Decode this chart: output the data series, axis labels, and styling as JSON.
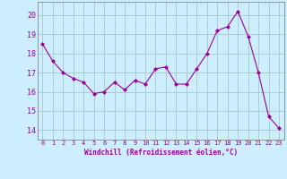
{
  "x": [
    0,
    1,
    2,
    3,
    4,
    5,
    6,
    7,
    8,
    9,
    10,
    11,
    12,
    13,
    14,
    15,
    16,
    17,
    18,
    19,
    20,
    21,
    22,
    23
  ],
  "y": [
    18.5,
    17.6,
    17.0,
    16.7,
    16.5,
    15.9,
    16.0,
    16.5,
    16.1,
    16.6,
    16.4,
    17.2,
    17.3,
    16.4,
    16.4,
    17.2,
    18.0,
    19.2,
    19.4,
    20.2,
    18.9,
    17.0,
    14.7,
    14.1
  ],
  "line_color": "#990099",
  "marker": "D",
  "marker_size": 2,
  "bg_color": "#cceeff",
  "grid_color": "#aacccc",
  "xlabel": "Windchill (Refroidissement éolien,°C)",
  "xlabel_color": "#990099",
  "tick_color": "#990099",
  "ylim": [
    13.5,
    20.7
  ],
  "xlim": [
    -0.5,
    23.5
  ],
  "yticks": [
    14,
    15,
    16,
    17,
    18,
    19,
    20
  ],
  "xticks": [
    0,
    1,
    2,
    3,
    4,
    5,
    6,
    7,
    8,
    9,
    10,
    11,
    12,
    13,
    14,
    15,
    16,
    17,
    18,
    19,
    20,
    21,
    22,
    23
  ]
}
